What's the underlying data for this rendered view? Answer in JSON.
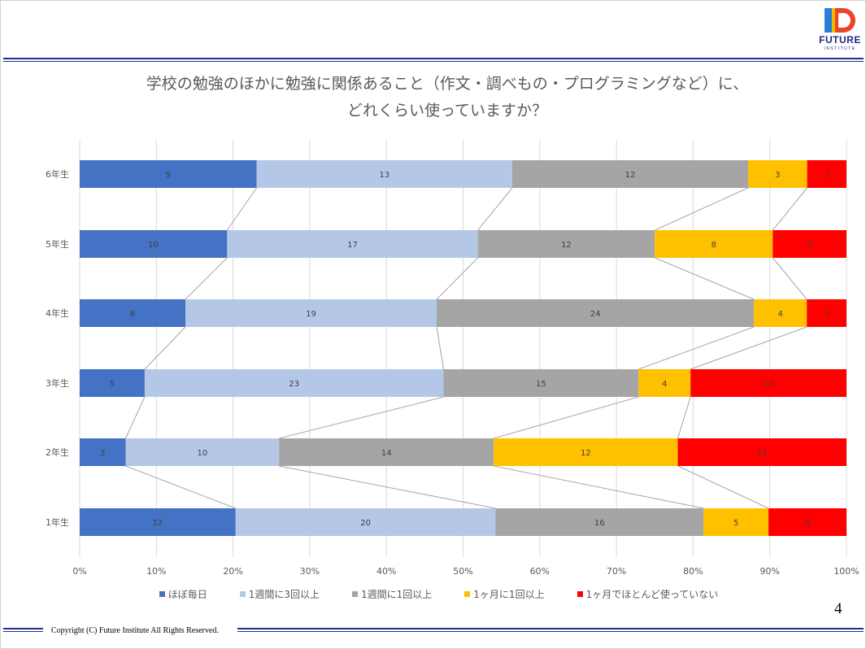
{
  "slide": {
    "title_line1": "学校の勉強のほかに勉強に関係あること（作文・調べもの・プログラミングなど）に、",
    "title_line2": "どれくらい使っていますか？",
    "page_number": "4",
    "copyright": "Copyright (C) Future Institute All Rights Reserved.",
    "logo_text": "FUTURE",
    "logo_sub": "INSTITUTE"
  },
  "chart_data": {
    "type": "bar",
    "orientation": "horizontal",
    "stacked": "percent",
    "categories": [
      "6年生",
      "5年生",
      "4年生",
      "3年生",
      "2年生",
      "1年生"
    ],
    "series": [
      {
        "name": "ほぼ毎日",
        "color": "#4472c4",
        "values": [
          9,
          10,
          8,
          5,
          3,
          12
        ]
      },
      {
        "name": "1週間に3回以上",
        "color": "#b4c7e7",
        "values": [
          13,
          17,
          19,
          23,
          10,
          20
        ]
      },
      {
        "name": "1週間に1回以上",
        "color": "#a5a5a5",
        "values": [
          12,
          12,
          24,
          15,
          14,
          16
        ]
      },
      {
        "name": "1ヶ月に1回以上",
        "color": "#ffc000",
        "values": [
          3,
          8,
          4,
          4,
          12,
          5
        ]
      },
      {
        "name": "1ヶ月でほとんど使っていない",
        "color": "#ff0000",
        "values": [
          2,
          5,
          3,
          12,
          11,
          6
        ]
      }
    ],
    "x_ticks": [
      "0%",
      "10%",
      "20%",
      "30%",
      "40%",
      "50%",
      "60%",
      "70%",
      "80%",
      "90%",
      "100%"
    ],
    "xlim": [
      0,
      100
    ],
    "grid": true,
    "series_lines": true,
    "legend": "bottom"
  }
}
